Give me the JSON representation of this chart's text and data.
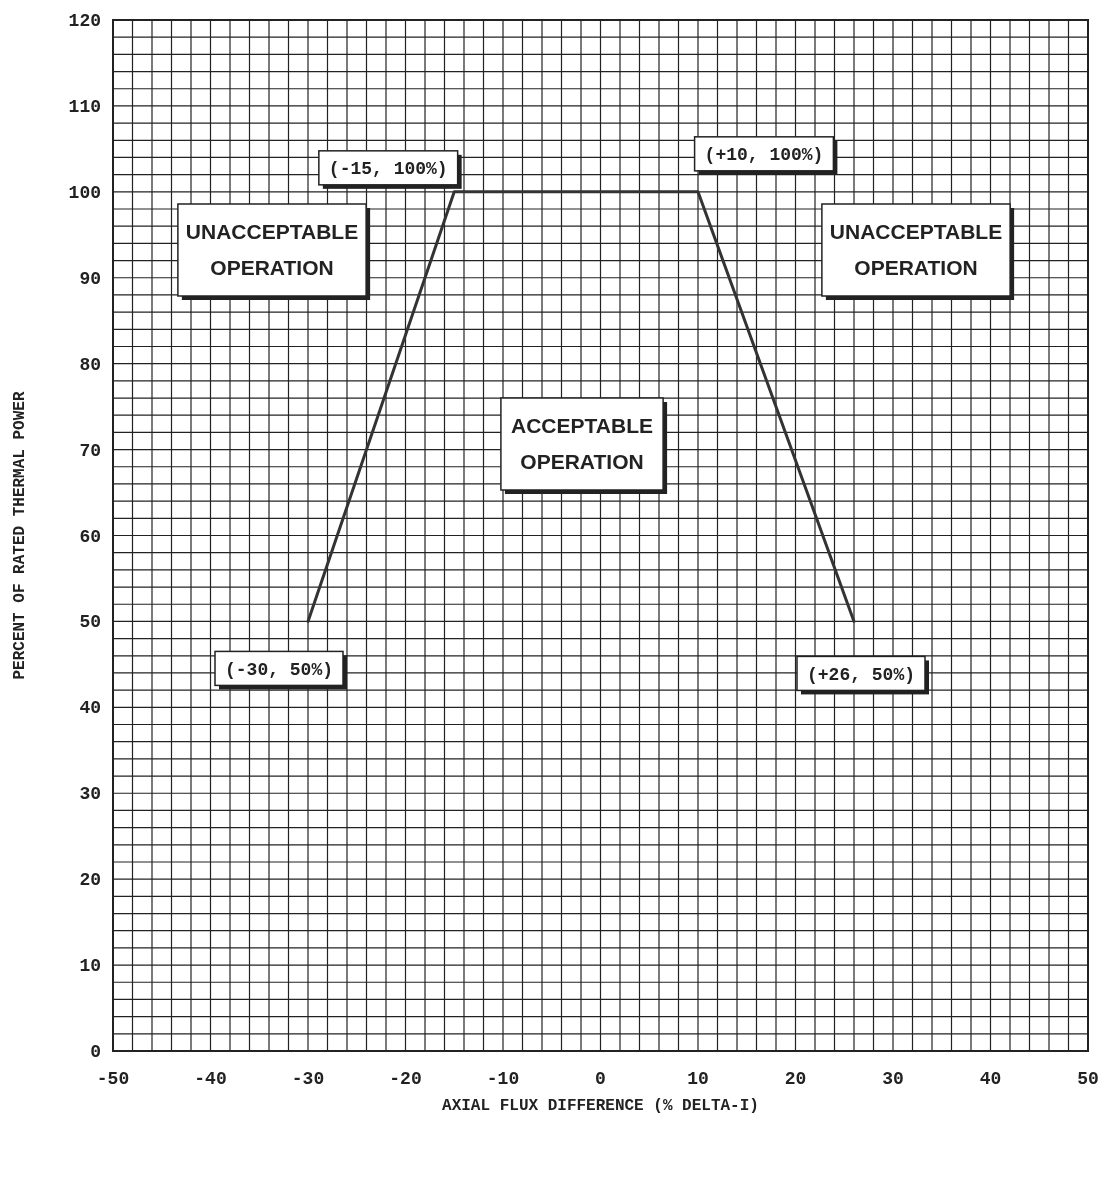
{
  "chart_data": {
    "type": "line",
    "xlabel": "AXIAL FLUX DIFFERENCE (% DELTA-I)",
    "ylabel": "PERCENT OF RATED THERMAL POWER",
    "x": [
      -30,
      -15,
      10,
      26
    ],
    "series": [
      {
        "color": "#333333",
        "values": [
          50,
          100,
          100,
          50
        ]
      }
    ],
    "xlim": [
      -50,
      50
    ],
    "xticks": [
      -50,
      {
        "value": -48,
        "label": null
      },
      {
        "value": -46,
        "label": null
      },
      {
        "value": -44,
        "label": null
      },
      {
        "value": -42,
        "label": null
      },
      -40,
      {
        "value": -38,
        "label": null
      },
      {
        "value": -36,
        "label": null
      },
      {
        "value": -34,
        "label": null
      },
      {
        "value": -32,
        "label": null
      },
      -30,
      {
        "value": -28,
        "label": null
      },
      {
        "value": -26,
        "label": null
      },
      {
        "value": -24,
        "label": null
      },
      {
        "value": -22,
        "label": null
      },
      -20,
      {
        "value": -18,
        "label": null
      },
      {
        "value": -16,
        "label": null
      },
      {
        "value": -14,
        "label": null
      },
      {
        "value": -12,
        "label": null
      },
      -10,
      {
        "value": -8,
        "label": null
      },
      {
        "value": -6,
        "label": null
      },
      {
        "value": -4,
        "label": null
      },
      {
        "value": -2,
        "label": null
      },
      0,
      {
        "value": 2,
        "label": null
      },
      {
        "value": 4,
        "label": null
      },
      {
        "value": 6,
        "label": null
      },
      {
        "value": 8,
        "label": null
      },
      10,
      {
        "value": 12,
        "label": null
      },
      {
        "value": 14,
        "label": null
      },
      {
        "value": 16,
        "label": null
      },
      {
        "value": 18,
        "label": null
      },
      20,
      {
        "value": 22,
        "label": null
      },
      {
        "value": 24,
        "label": null
      },
      {
        "value": 26,
        "label": null
      },
      {
        "value": 28,
        "label": null
      },
      30,
      {
        "value": 32,
        "label": null
      },
      {
        "value": 34,
        "label": null
      },
      {
        "value": 36,
        "label": null
      },
      {
        "value": 38,
        "label": null
      },
      40,
      {
        "value": 42,
        "label": null
      },
      {
        "value": 44,
        "label": null
      },
      {
        "value": 46,
        "label": null
      },
      {
        "value": 48,
        "label": null
      },
      50
    ],
    "ylim": [
      0,
      120
    ],
    "yticks": [
      0,
      {
        "value": 2,
        "label": null
      },
      {
        "value": 4,
        "label": null
      },
      {
        "value": 6,
        "label": null
      },
      {
        "value": 8,
        "label": null
      },
      10,
      {
        "value": 12,
        "label": null
      },
      {
        "value": 14,
        "label": null
      },
      {
        "value": 16,
        "label": null
      },
      {
        "value": 18,
        "label": null
      },
      20,
      {
        "value": 22,
        "label": null
      },
      {
        "value": 24,
        "label": null
      },
      {
        "value": 26,
        "label": null
      },
      {
        "value": 28,
        "label": null
      },
      30,
      {
        "value": 32,
        "label": null
      },
      {
        "value": 34,
        "label": null
      },
      {
        "value": 36,
        "label": null
      },
      {
        "value": 38,
        "label": null
      },
      40,
      {
        "value": 42,
        "label": null
      },
      {
        "value": 44,
        "label": null
      },
      {
        "value": 46,
        "label": null
      },
      {
        "value": 48,
        "label": null
      },
      50,
      {
        "value": 52,
        "label": null
      },
      {
        "value": 54,
        "label": null
      },
      {
        "value": 56,
        "label": null
      },
      {
        "value": 58,
        "label": null
      },
      60,
      {
        "value": 62,
        "label": null
      },
      {
        "value": 64,
        "label": null
      },
      {
        "value": 66,
        "label": null
      },
      {
        "value": 68,
        "label": null
      },
      70,
      {
        "value": 72,
        "label": null
      },
      {
        "value": 74,
        "label": null
      },
      {
        "value": 76,
        "label": null
      },
      {
        "value": 78,
        "label": null
      },
      80,
      {
        "value": 82,
        "label": null
      },
      {
        "value": 84,
        "label": null
      },
      {
        "value": 86,
        "label": null
      },
      {
        "value": 88,
        "label": null
      },
      90,
      {
        "value": 92,
        "label": null
      },
      {
        "value": 94,
        "label": null
      },
      {
        "value": 96,
        "label": null
      },
      {
        "value": 98,
        "label": null
      },
      100,
      {
        "value": 102,
        "label": null
      },
      {
        "value": 104,
        "label": null
      },
      {
        "value": 106,
        "label": null
      },
      {
        "value": 108,
        "label": null
      },
      110,
      {
        "value": 112,
        "label": null
      },
      {
        "value": 114,
        "label": null
      },
      {
        "value": 116,
        "label": null
      },
      {
        "value": 118,
        "label": null
      },
      120
    ],
    "grid": true,
    "marker": "none",
    "line_style": "solid",
    "annotations": [
      {
        "text": "(-15, 100%)",
        "x": -15,
        "y": 100
      },
      {
        "text": "(+10, 100%)",
        "x": 10,
        "y": 100
      },
      {
        "text": "(-30, 50%)",
        "x": -30,
        "y": 50
      },
      {
        "text": "(+26, 50%)",
        "x": 26,
        "y": 50
      },
      "UNACCEPTABLE OPERATION",
      "UNACCEPTABLE OPERATION",
      "ACCEPTABLE OPERATION"
    ]
  }
}
